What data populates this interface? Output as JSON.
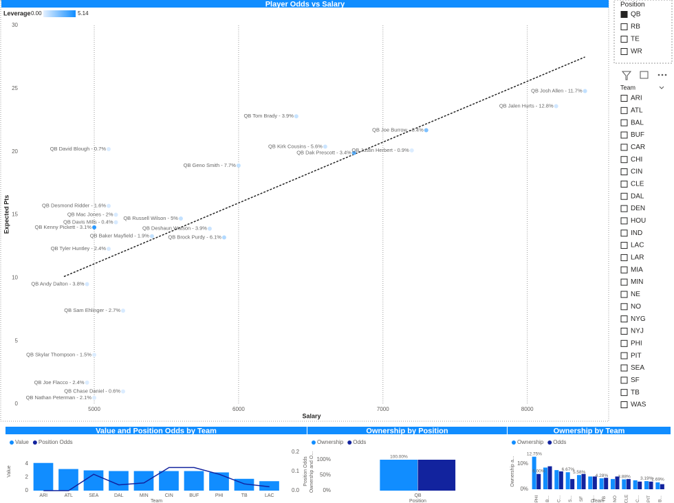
{
  "chart_data": [
    {
      "type": "scatter",
      "title": "Player Odds vs Salary",
      "x_label": "Salary",
      "y_label": "Expected Pts",
      "legend_title": "Leverage",
      "color_scale": {
        "min": {
          "value": 0,
          "label": "0.00"
        },
        "max": 5.14,
        "colors": [
          "#e3f0ff",
          "#118dff"
        ]
      },
      "point_labels": [
        "QB Josh Allen - 11.7%",
        "QB Jalen Hurts - 12.8%",
        "QB Tom Brady - 3.9%",
        "QB Joe Burrow - 8.4%",
        "QB Kirk Cousins - 5.6%",
        "QB Dak Prescott - 3.4%",
        "QB Justin Herbert - 0.9%",
        "QB Geno Smith - 7.7%",
        "QB David Blough - 0.7%",
        "QB Desmond Ridder - 1.6%",
        "QB Mac Jones - 2%",
        "QB Davis Mills - 0.4%",
        "QB Kenny Pickett - 3.1%",
        "QB Baker Mayfield - 1.9%",
        "QB Russell Wilson - 5%",
        "QB Deshaun Watson - 3.9%",
        "QB Brock Purdy - 6.1%",
        "QB Tyler Huntley - 2.4%",
        "QB Andy Dalton - 3.8%",
        "QB Sam Ehlinger - 2.7%",
        "QB Skylar Thompson - 1.5%",
        "QB Joe Flacco - 2.4%",
        "QB Chase Daniel - 0.6%",
        "QB Nathan Peterman - 2.1%"
      ],
      "x": [
        8400,
        8200,
        6400,
        7300,
        6600,
        6800,
        7200,
        6000,
        5100,
        5100,
        5150,
        5150,
        5000,
        5400,
        5600,
        5800,
        5900,
        5100,
        4950,
        5200,
        5000,
        4950,
        5200,
        5000
      ],
      "values": [
        24.8,
        23.6,
        22.8,
        21.7,
        20.4,
        19.9,
        20.1,
        18.9,
        20.2,
        15.7,
        15.0,
        14.4,
        14.0,
        13.3,
        14.7,
        13.9,
        13.2,
        12.3,
        9.5,
        7.4,
        3.9,
        1.7,
        1.0,
        0.5
      ],
      "leverage": [
        0.8,
        0.5,
        0.7,
        2.5,
        0.6,
        3.5,
        0.2,
        0.8,
        0.2,
        0.3,
        0.3,
        0.3,
        4.5,
        0.8,
        0.8,
        0.6,
        1.2,
        0.3,
        0.4,
        0.3,
        0.2,
        0.2,
        0.2,
        0.2
      ],
      "trendline": {
        "x": [
          4790,
          8400
        ],
        "values": [
          10.1,
          27.5
        ],
        "color": "#222222"
      },
      "xlim": [
        4490,
        8540
      ],
      "xticks": [
        5000,
        6000,
        7000,
        8000
      ],
      "ylim": [
        0,
        30
      ],
      "yticks": [
        0,
        5,
        10,
        15,
        20,
        25,
        30
      ],
      "grid": "x"
    },
    {
      "type": "combo",
      "title": "Value and Position Odds by Team",
      "x_label": "Team",
      "y_label": "Value",
      "y2_label": "Position Odds",
      "categories": [
        "ARI",
        "ATL",
        "SEA",
        "DAL",
        "MIN",
        "CIN",
        "BUF",
        "PHI",
        "TB",
        "LAC"
      ],
      "series": [
        {
          "name": "Value",
          "color": "#118dff",
          "type": "bar",
          "values": [
            4.1,
            3.2,
            3.0,
            2.9,
            2.9,
            2.9,
            2.9,
            2.7,
            1.75,
            1.4
          ]
        },
        {
          "name": "Position Odds",
          "color": "#12239e",
          "type": "line",
          "axis": "y2",
          "values": [
            0,
            0,
            0.085,
            0.03,
            0.04,
            0.12,
            0.12,
            0.085,
            0.035,
            0.02
          ]
        }
      ],
      "ylim": [
        0,
        5.7
      ],
      "yticks": [
        0,
        2,
        4
      ],
      "y2lim": [
        0,
        0.2
      ],
      "y2ticks": [
        {
          "value": 0,
          "label": "0.0"
        },
        {
          "value": 0.1,
          "label": "0.1"
        },
        {
          "value": 0.2,
          "label": "0.2"
        }
      ]
    },
    {
      "type": "grouped_bar",
      "title": "Ownership by Position",
      "x_label": "Position",
      "y_label": "Ownership and O...",
      "categories": [
        "QB"
      ],
      "series": [
        {
          "name": "Ownership",
          "color": "#118dff",
          "values": [
            100
          ],
          "value_labels": [
            "100.00%"
          ]
        },
        {
          "name": "Odds",
          "color": "#12239e",
          "values": [
            100
          ]
        }
      ],
      "ylim": [
        0,
        120
      ],
      "yticks": [
        {
          "value": 0,
          "label": "0%"
        },
        {
          "value": 50,
          "label": "50%"
        },
        {
          "value": 100,
          "label": "100%"
        }
      ]
    },
    {
      "type": "grouped_bar",
      "title": "Ownership by Team",
      "x_label": "Team",
      "y_label": "Ownership a...",
      "rotate_labels": true,
      "categories": [
        "PHI",
        "B...",
        "C...",
        "S...",
        "SF",
        "D...",
        "TB",
        "NO",
        "CLE",
        "C...",
        "PIT",
        "B..."
      ],
      "series": [
        {
          "name": "Ownership",
          "color": "#118dff",
          "values": [
            12.75,
            8.5,
            7.5,
            6.67,
            5.58,
            5.0,
            4.28,
            4.0,
            3.88,
            3.5,
            3.19,
            2.69
          ],
          "value_labels": [
            "12.75%",
            null,
            null,
            "6.67%",
            "5.58%",
            null,
            "4.28%",
            null,
            "3.88%",
            null,
            "3.19%",
            "2.69%"
          ]
        },
        {
          "name": "Odds",
          "color": "#12239e",
          "values": [
            6.0,
            9,
            7,
            4,
            6,
            5,
            4.5,
            5,
            4,
            3,
            3,
            2
          ],
          "value_labels": [
            "6.00%",
            null,
            null,
            null,
            null,
            null,
            null,
            null,
            null,
            null,
            null,
            null
          ]
        }
      ],
      "ylim": [
        0,
        14
      ],
      "yticks": [
        {
          "value": 0,
          "label": "0%"
        },
        {
          "value": 10,
          "label": "10%"
        }
      ]
    }
  ],
  "slicers": {
    "position": {
      "title": "Position",
      "items": [
        "QB",
        "RB",
        "TE",
        "WR"
      ],
      "checked": [
        true,
        false,
        false,
        false
      ]
    },
    "team": {
      "title": "Team",
      "items": [
        "ARI",
        "ATL",
        "BAL",
        "BUF",
        "CAR",
        "CHI",
        "CIN",
        "CLE",
        "DAL",
        "DEN",
        "HOU",
        "IND",
        "LAC",
        "LAR",
        "MIA",
        "MIN",
        "NE",
        "NO",
        "NYG",
        "NYJ",
        "PHI",
        "PIT",
        "SEA",
        "SF",
        "TB",
        "WAS"
      ]
    }
  }
}
